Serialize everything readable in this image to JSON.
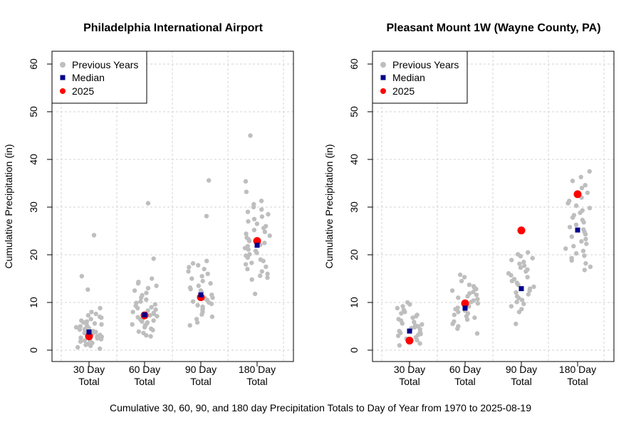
{
  "caption": "Cumulative 30, 60, 90, and 180 day Precipitation Totals to Day of Year from 1970 to 2025-08-19",
  "colors": {
    "previous": "#bebebe",
    "median": "#00008b",
    "current": "#ff0000",
    "grid": "#d3d3d3"
  },
  "chart_data": [
    {
      "type": "scatter",
      "title": "Philadelphia International Airport",
      "ylabel": "Cumulative Precipitation (in)",
      "xlabel": "",
      "ylim": [
        0,
        60
      ],
      "yticks": [
        0,
        10,
        20,
        30,
        40,
        50,
        60
      ],
      "grid": true,
      "legend_position": "top-left",
      "categories": [
        [
          "30 Day",
          "Total"
        ],
        [
          "60 Day",
          "Total"
        ],
        [
          "90 Day",
          "Total"
        ],
        [
          "180 Day",
          "Total"
        ]
      ],
      "legend": [
        "Previous Years",
        "Median",
        "2025"
      ],
      "series": [
        {
          "name": "Previous Years",
          "values": [
            [
              0.3,
              0.6,
              0.9,
              1.1,
              1.3,
              1.5,
              1.8,
              2.0,
              2.1,
              2.3,
              2.5,
              2.6,
              2.8,
              2.9,
              3.0,
              3.2,
              3.3,
              3.5,
              3.6,
              3.8,
              3.9,
              4.0,
              4.1,
              4.3,
              4.4,
              4.6,
              4.8,
              5.0,
              5.2,
              5.4,
              5.6,
              5.8,
              6.0,
              6.2,
              6.5,
              6.8,
              7.0,
              7.3,
              7.6,
              8.0,
              8.8,
              12.7,
              15.5,
              24.1
            ],
            [
              2.9,
              3.1,
              3.6,
              3.9,
              4.2,
              4.5,
              4.8,
              5.0,
              5.2,
              5.4,
              5.6,
              5.8,
              6.0,
              6.2,
              6.4,
              6.6,
              6.9,
              7.1,
              7.3,
              7.6,
              7.8,
              8.0,
              8.3,
              8.5,
              8.8,
              9.0,
              9.3,
              9.6,
              9.9,
              10.2,
              10.6,
              11.0,
              11.5,
              12.0,
              12.5,
              13.0,
              13.5,
              14.0,
              14.3,
              15.0,
              19.2,
              30.8
            ],
            [
              5.2,
              5.8,
              6.5,
              7.0,
              7.5,
              8.0,
              8.4,
              8.8,
              9.1,
              9.4,
              9.7,
              10.0,
              10.2,
              10.5,
              10.8,
              11.0,
              11.3,
              11.6,
              11.9,
              12.2,
              12.5,
              12.8,
              13.1,
              13.5,
              14.0,
              14.5,
              15.0,
              15.5,
              16.0,
              16.5,
              17.0,
              17.4,
              17.8,
              18.2,
              18.7,
              28.1,
              35.6
            ],
            [
              11.8,
              14.8,
              15.2,
              15.6,
              16.0,
              16.5,
              17.0,
              17.5,
              18.0,
              18.3,
              18.7,
              19.0,
              19.4,
              19.8,
              20.1,
              20.4,
              20.8,
              21.1,
              21.4,
              21.8,
              22.1,
              22.5,
              22.9,
              23.2,
              23.6,
              24.0,
              24.4,
              24.8,
              25.2,
              25.6,
              26.0,
              26.5,
              27.0,
              27.5,
              28.0,
              28.5,
              29.0,
              29.5,
              30.0,
              30.6,
              31.3,
              33.2,
              35.4,
              45.0
            ]
          ]
        },
        {
          "name": "Median",
          "values": [
            3.8,
            7.4,
            11.6,
            22.0
          ]
        },
        {
          "name": "2025",
          "values": [
            2.9,
            7.3,
            11.1,
            22.9
          ]
        }
      ]
    },
    {
      "type": "scatter",
      "title": "Pleasant Mount 1W (Wayne County, PA)",
      "ylabel": "Cumulative Precipitation (in)",
      "xlabel": "",
      "ylim": [
        0,
        60
      ],
      "yticks": [
        0,
        10,
        20,
        30,
        40,
        50,
        60
      ],
      "grid": true,
      "legend_position": "top-left",
      "categories": [
        [
          "30 Day",
          "Total"
        ],
        [
          "60 Day",
          "Total"
        ],
        [
          "90 Day",
          "Total"
        ],
        [
          "180 Day",
          "Total"
        ]
      ],
      "legend": [
        "Previous Years",
        "Median",
        "2025"
      ],
      "series": [
        {
          "name": "Previous Years",
          "values": [
            [
              1.0,
              1.4,
              1.8,
              2.1,
              2.4,
              2.7,
              3.0,
              3.2,
              3.4,
              3.6,
              3.8,
              4.0,
              4.2,
              4.4,
              4.6,
              4.8,
              5.0,
              5.2,
              5.4,
              5.6,
              5.9,
              6.2,
              6.5,
              6.8,
              7.1,
              7.4,
              7.7,
              8.0,
              8.4,
              8.8,
              9.2,
              9.6,
              10.0
            ],
            [
              3.5,
              4.5,
              5.0,
              5.5,
              6.0,
              6.4,
              6.8,
              7.1,
              7.4,
              7.7,
              8.0,
              8.3,
              8.6,
              8.9,
              9.2,
              9.5,
              9.8,
              10.1,
              10.4,
              10.7,
              11.0,
              11.3,
              11.6,
              11.9,
              12.2,
              12.5,
              12.8,
              13.1,
              13.4,
              13.7,
              14.5,
              15.3,
              15.8
            ],
            [
              5.5,
              8.0,
              8.6,
              9.2,
              9.7,
              10.1,
              10.5,
              10.9,
              11.3,
              11.7,
              12.1,
              12.5,
              12.9,
              13.3,
              13.7,
              14.1,
              14.5,
              14.9,
              15.3,
              15.7,
              16.1,
              16.5,
              16.9,
              17.3,
              17.7,
              18.1,
              18.5,
              18.9,
              19.3,
              19.7,
              20.1,
              20.5
            ],
            [
              16.8,
              17.5,
              18.2,
              18.8,
              19.3,
              19.8,
              20.3,
              20.8,
              21.3,
              21.8,
              22.3,
              22.8,
              23.3,
              23.8,
              24.3,
              24.8,
              25.3,
              25.8,
              26.3,
              26.8,
              27.3,
              27.8,
              28.3,
              28.8,
              29.3,
              29.8,
              30.3,
              30.8,
              31.3,
              32.0,
              33.0,
              34.0,
              34.6,
              35.5,
              36.3,
              37.5
            ]
          ]
        },
        {
          "name": "Median",
          "values": [
            4.0,
            8.8,
            12.9,
            25.2
          ]
        },
        {
          "name": "2025",
          "values": [
            2.0,
            9.8,
            25.1,
            32.7
          ]
        }
      ]
    }
  ]
}
